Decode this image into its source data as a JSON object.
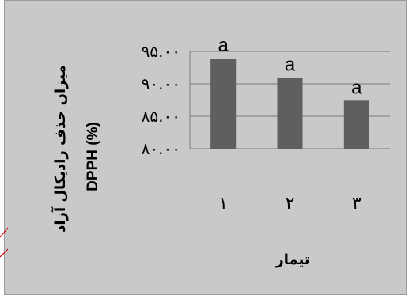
{
  "chart_data": {
    "type": "bar",
    "categories": [
      "۱",
      "۲",
      "۳"
    ],
    "values": [
      93.9,
      90.9,
      87.4
    ],
    "data_labels": [
      "a",
      "a",
      "a"
    ],
    "yticks": [
      "۸۰.۰۰",
      "۸۵.۰۰",
      "۹۰.۰۰",
      "۹۵.۰۰"
    ],
    "ytick_values": [
      80,
      85,
      90,
      95
    ],
    "ylim": [
      80,
      95
    ],
    "ylabel_line1": "میزان حذف رادیکال آزاد",
    "ylabel_line2": "DPPH (%)",
    "xlabel": "تیمار",
    "grid": true,
    "colors": {
      "bar": "#5f5f5f",
      "background": "#c9c9c9",
      "grid": "#7a7a7a",
      "annotation_line": "#d00000"
    }
  }
}
